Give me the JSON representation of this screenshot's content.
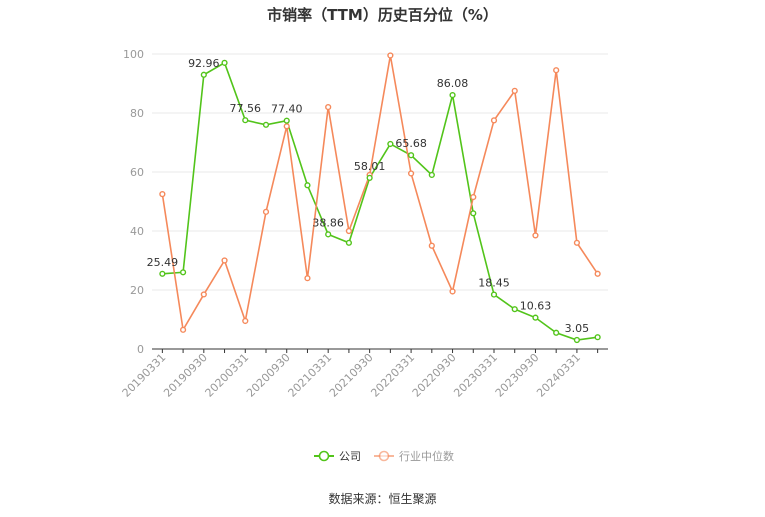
{
  "title": "市销率（TTM）历史百分位（%）",
  "source": "数据来源：恒生聚源",
  "colors": {
    "company": "#52c41a",
    "industry": "#f5895b",
    "grid": "#e8e8e8",
    "axis": "#333333"
  },
  "chart_data": {
    "type": "line",
    "title": "市销率（TTM）历史百分位（%）",
    "ylim": [
      0,
      100
    ],
    "yticks": [
      0,
      20,
      40,
      60,
      80,
      100
    ],
    "grid": "horizontal",
    "legend_position": "bottom",
    "x": [
      "20190331",
      "20190630",
      "20190930",
      "20191231",
      "20200331",
      "20200630",
      "20200930",
      "20201231",
      "20210331",
      "20210630",
      "20210930",
      "20211231",
      "20220331",
      "20220630",
      "20220930",
      "20221231",
      "20230331",
      "20230630",
      "20230930",
      "20231231",
      "20240331",
      "20240630"
    ],
    "x_tick_labels": [
      "20190331",
      "20190930",
      "20200331",
      "20200930",
      "20210331",
      "20210930",
      "20220331",
      "20220930",
      "20230331",
      "20230930",
      "20240331"
    ],
    "series": [
      {
        "name": "公司",
        "color": "#52c41a",
        "values": [
          25.49,
          26.0,
          92.96,
          97.0,
          77.56,
          76.0,
          77.4,
          55.5,
          38.86,
          36.0,
          58.01,
          69.5,
          65.68,
          59.0,
          86.08,
          46.0,
          18.45,
          13.5,
          10.63,
          5.5,
          3.05,
          4.0
        ],
        "labels": {
          "0": "25.49",
          "2": "92.96",
          "4": "77.56",
          "6": "77.40",
          "8": "38.86",
          "10": "58.01",
          "12": "65.68",
          "14": "86.08",
          "16": "18.45",
          "18": "10.63",
          "20": "3.05"
        }
      },
      {
        "name": "行业中位数",
        "color": "#f5895b",
        "values": [
          52.5,
          6.5,
          18.5,
          30.0,
          9.5,
          46.5,
          75.5,
          24.0,
          82.0,
          40.0,
          59.0,
          99.5,
          59.5,
          35.0,
          19.5,
          51.5,
          77.5,
          87.5,
          38.5,
          94.5,
          36.0,
          25.5
        ]
      }
    ]
  }
}
